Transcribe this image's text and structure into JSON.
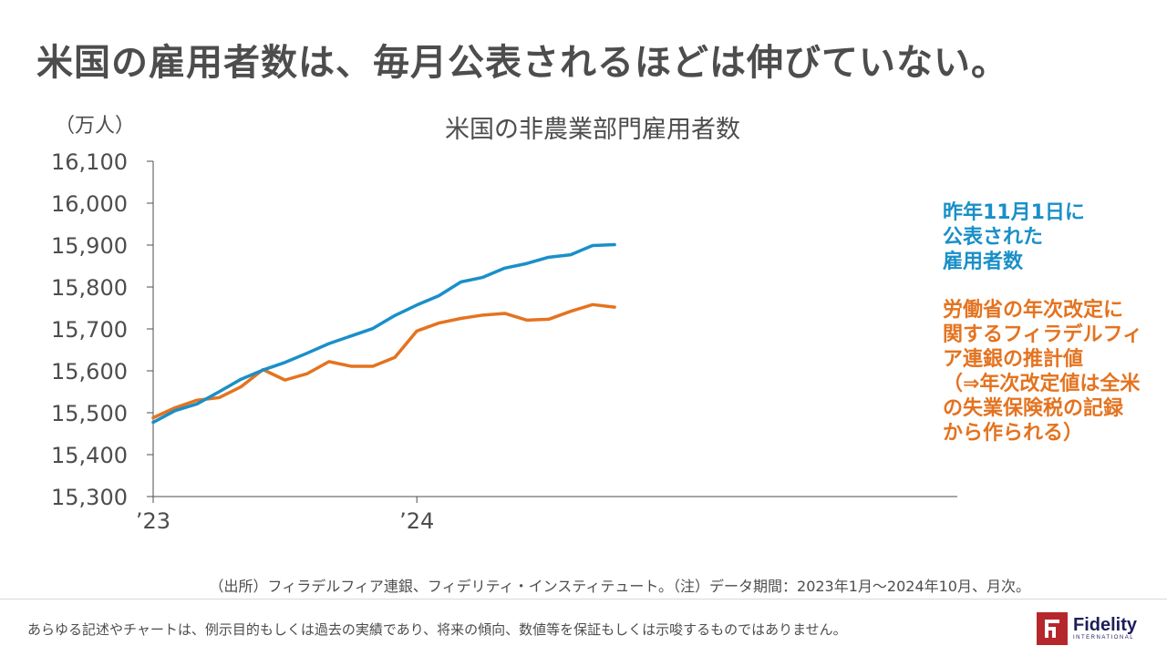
{
  "slide": {
    "title": "米国の雇用者数は、毎月公表されるほどは伸びていない。",
    "source": "（出所）フィラデルフィア連銀、フィデリティ・インスティテュート。（注）データ期間：2023年1月～2024年10月、月次。",
    "disclaimer": "あらゆる記述やチャートは、例示目的もしくは過去の実績であり、将来の傾向、数値等を保証もしくは示唆するものではありません。",
    "logo_name": "Fidelity",
    "logo_sub": "INTERNATIONAL"
  },
  "colors": {
    "blue": "#1a8fc8",
    "orange": "#e4731f",
    "axis": "#4d4d4d",
    "logo": "#b5272d"
  },
  "chart_data": {
    "type": "line",
    "title": "米国の非農業部門雇用者数",
    "ylabel": "（万人）",
    "ylim": [
      15300,
      16100
    ],
    "yticks": [
      15300,
      15400,
      15500,
      15600,
      15700,
      15800,
      15900,
      16000,
      16100
    ],
    "ytick_labels": [
      "15,300",
      "15,400",
      "15,500",
      "15,600",
      "15,700",
      "15,800",
      "15,900",
      "16,000",
      "16,100"
    ],
    "x": [
      "2023-01",
      "2023-02",
      "2023-03",
      "2023-04",
      "2023-05",
      "2023-06",
      "2023-07",
      "2023-08",
      "2023-09",
      "2023-10",
      "2023-11",
      "2023-12",
      "2024-01",
      "2024-02",
      "2024-03",
      "2024-04",
      "2024-05",
      "2024-06",
      "2024-07",
      "2024-08",
      "2024-09",
      "2024-10"
    ],
    "xticks": [
      "2023-01",
      "2024-01"
    ],
    "xtick_labels": [
      "’23",
      "’24"
    ],
    "grid": false,
    "series": [
      {
        "name": "昨年11月1日に公表された雇用者数",
        "color": "#1a8fc8",
        "values": [
          15477,
          15505,
          15521,
          15550,
          15580,
          15602,
          15620,
          15642,
          15665,
          15683,
          15701,
          15732,
          15757,
          15779,
          15812,
          15823,
          15845,
          15856,
          15871,
          15877,
          15899,
          15901
        ]
      },
      {
        "name": "労働省の年次改定に関するフィラデルフィア連銀の推計値（⇒年次改定値は全米の失業保険税の記録から作られる）",
        "color": "#e4731f",
        "values": [
          15488,
          15512,
          15530,
          15536,
          15562,
          15603,
          15578,
          15593,
          15622,
          15611,
          15611,
          15632,
          15695,
          15714,
          15725,
          15733,
          15737,
          15721,
          15723,
          15742,
          15758,
          15752
        ]
      }
    ],
    "annotations": {
      "blue_lines": [
        "昨年11月1日に",
        "公表された",
        "雇用者数"
      ],
      "orange_lines": [
        "労働省の年次改定に",
        "関するフィラデルフィ",
        "ア連銀の推計値",
        "（⇒年次改定値は全米",
        "の失業保険税の記録",
        "から作られる）"
      ]
    }
  }
}
